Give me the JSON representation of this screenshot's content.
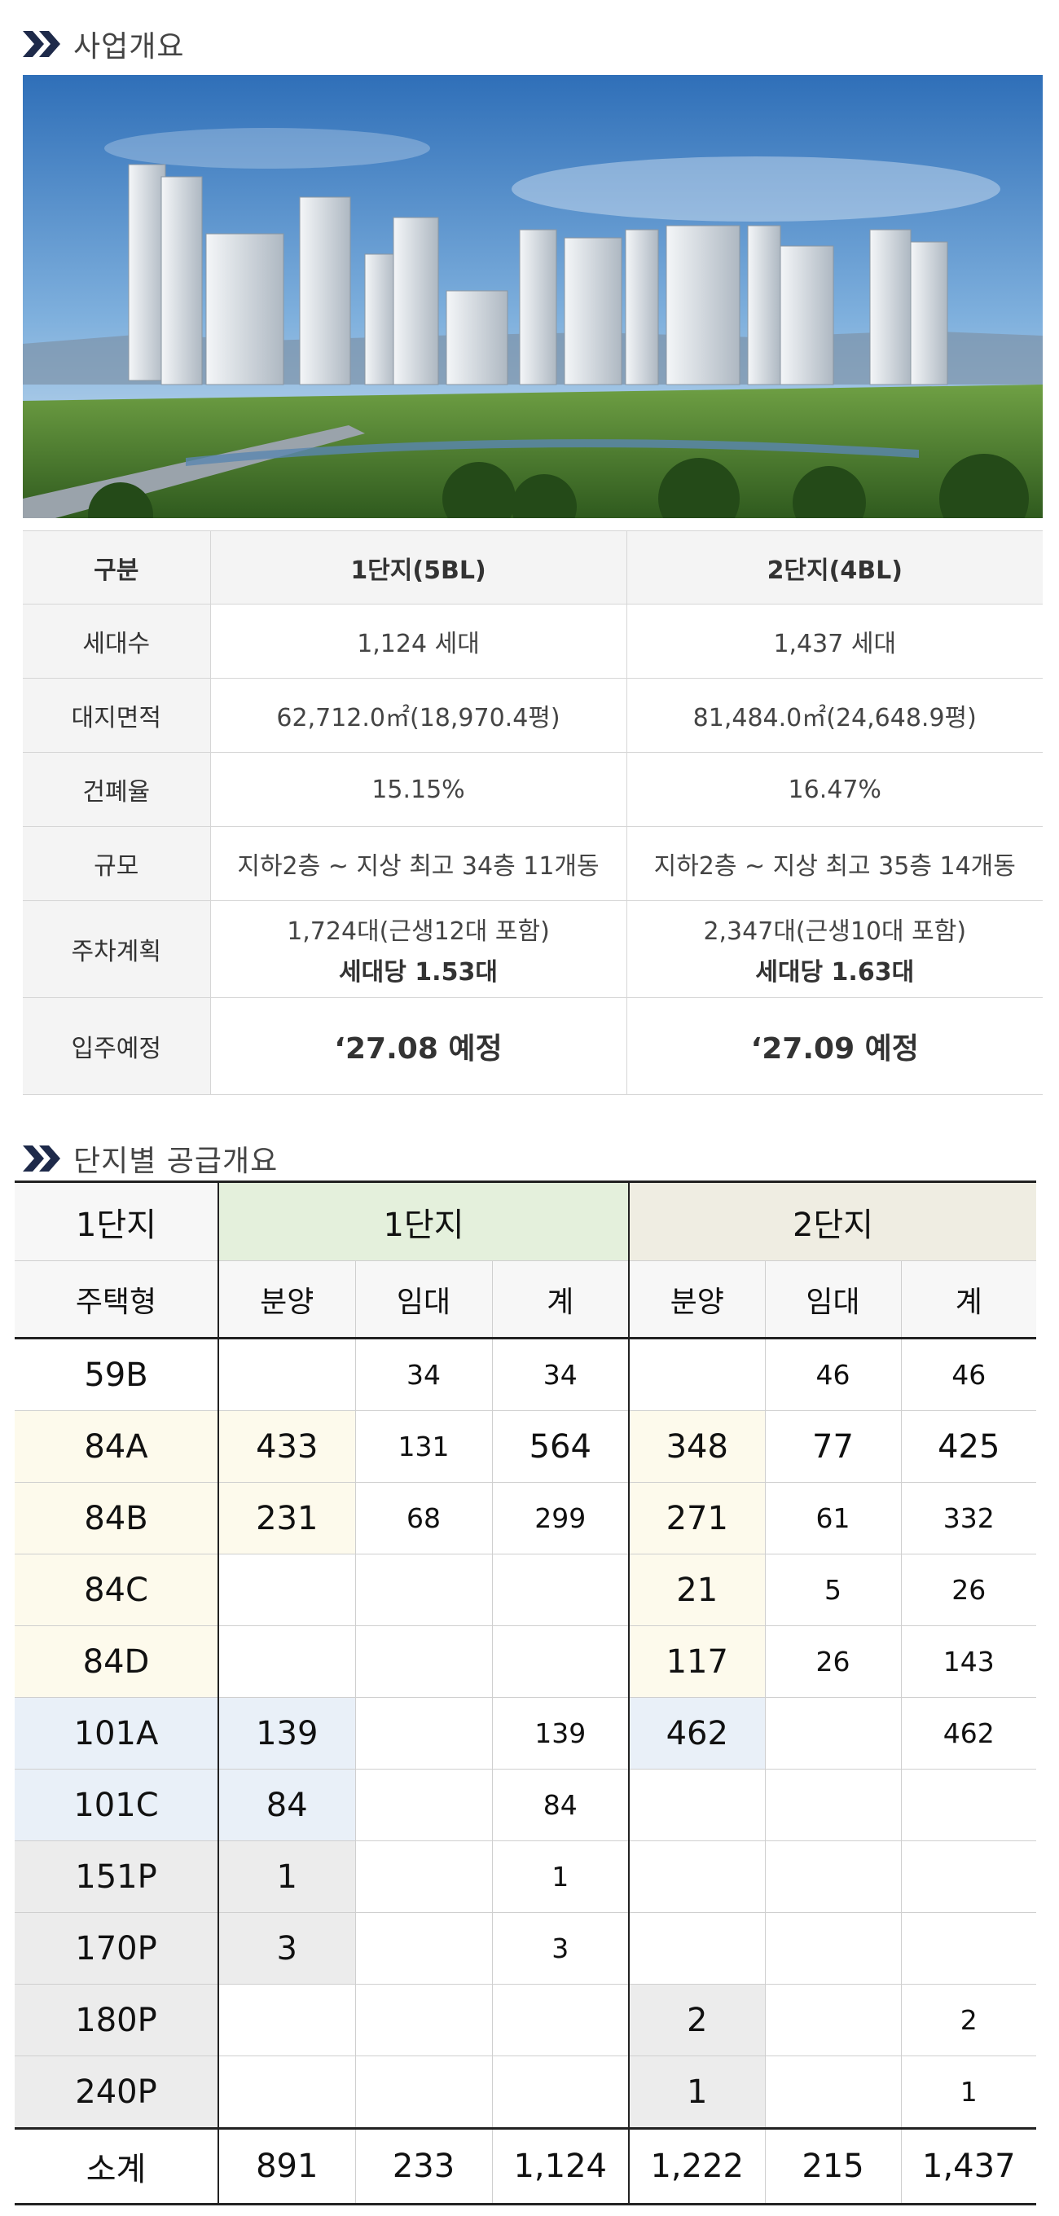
{
  "section1": {
    "title": "사업개요"
  },
  "overview": {
    "headers": [
      "구분",
      "1단지(5BL)",
      "2단지(4BL)"
    ],
    "rows": [
      {
        "label": "세대수",
        "c1": "1,124 세대",
        "c2": "1,437 세대"
      },
      {
        "label": "대지면적",
        "c1": "62,712.0㎡(18,970.4평)",
        "c2": "81,484.0㎡(24,648.9평)"
      },
      {
        "label": "건폐율",
        "c1": "15.15%",
        "c2": "16.47%"
      },
      {
        "label": "규모",
        "c1": "지하2층 ~ 지상 최고 34층 11개동",
        "c2": "지하2층 ~ 지상 최고 35층 14개동"
      }
    ],
    "parking": {
      "label": "주차계획",
      "c1a": "1,724대(근생12대 포함)",
      "c1b": "세대당 1.53대",
      "c2a": "2,347대(근생10대 포함)",
      "c2b": "세대당 1.63대"
    },
    "movein": {
      "label": "입주예정",
      "c1": "‘27.08 예정",
      "c2": "‘27.09 예정"
    }
  },
  "section2": {
    "title": "단지별 공급개요"
  },
  "supply": {
    "corner_top": "1단지",
    "corner_sub": "주택형",
    "group1": "1단지",
    "group2": "2단지",
    "cols": [
      "분양",
      "임대",
      "계",
      "분양",
      "임대",
      "계"
    ],
    "rows": [
      {
        "type": "59B",
        "v": [
          "",
          "34",
          "34",
          "",
          "46",
          "46"
        ]
      },
      {
        "type": "84A",
        "v": [
          "433",
          "131",
          "564",
          "348",
          "77",
          "425"
        ]
      },
      {
        "type": "84B",
        "v": [
          "231",
          "68",
          "299",
          "271",
          "61",
          "332"
        ]
      },
      {
        "type": "84C",
        "v": [
          "",
          "",
          "",
          "21",
          "5",
          "26"
        ]
      },
      {
        "type": "84D",
        "v": [
          "",
          "",
          "",
          "117",
          "26",
          "143"
        ]
      },
      {
        "type": "101A",
        "v": [
          "139",
          "",
          "139",
          "462",
          "",
          "462"
        ]
      },
      {
        "type": "101C",
        "v": [
          "84",
          "",
          "84",
          "",
          "",
          ""
        ]
      },
      {
        "type": "151P",
        "v": [
          "1",
          "",
          "1",
          "",
          "",
          ""
        ]
      },
      {
        "type": "170P",
        "v": [
          "3",
          "",
          "3",
          "",
          "",
          ""
        ]
      },
      {
        "type": "180P",
        "v": [
          "",
          "",
          "",
          "2",
          "",
          "2"
        ]
      },
      {
        "type": "240P",
        "v": [
          "",
          "",
          "",
          "1",
          "",
          "1"
        ]
      }
    ],
    "total": {
      "label": "소계",
      "v": [
        "891",
        "233",
        "1,124",
        "1,222",
        "215",
        "1,437"
      ]
    }
  }
}
